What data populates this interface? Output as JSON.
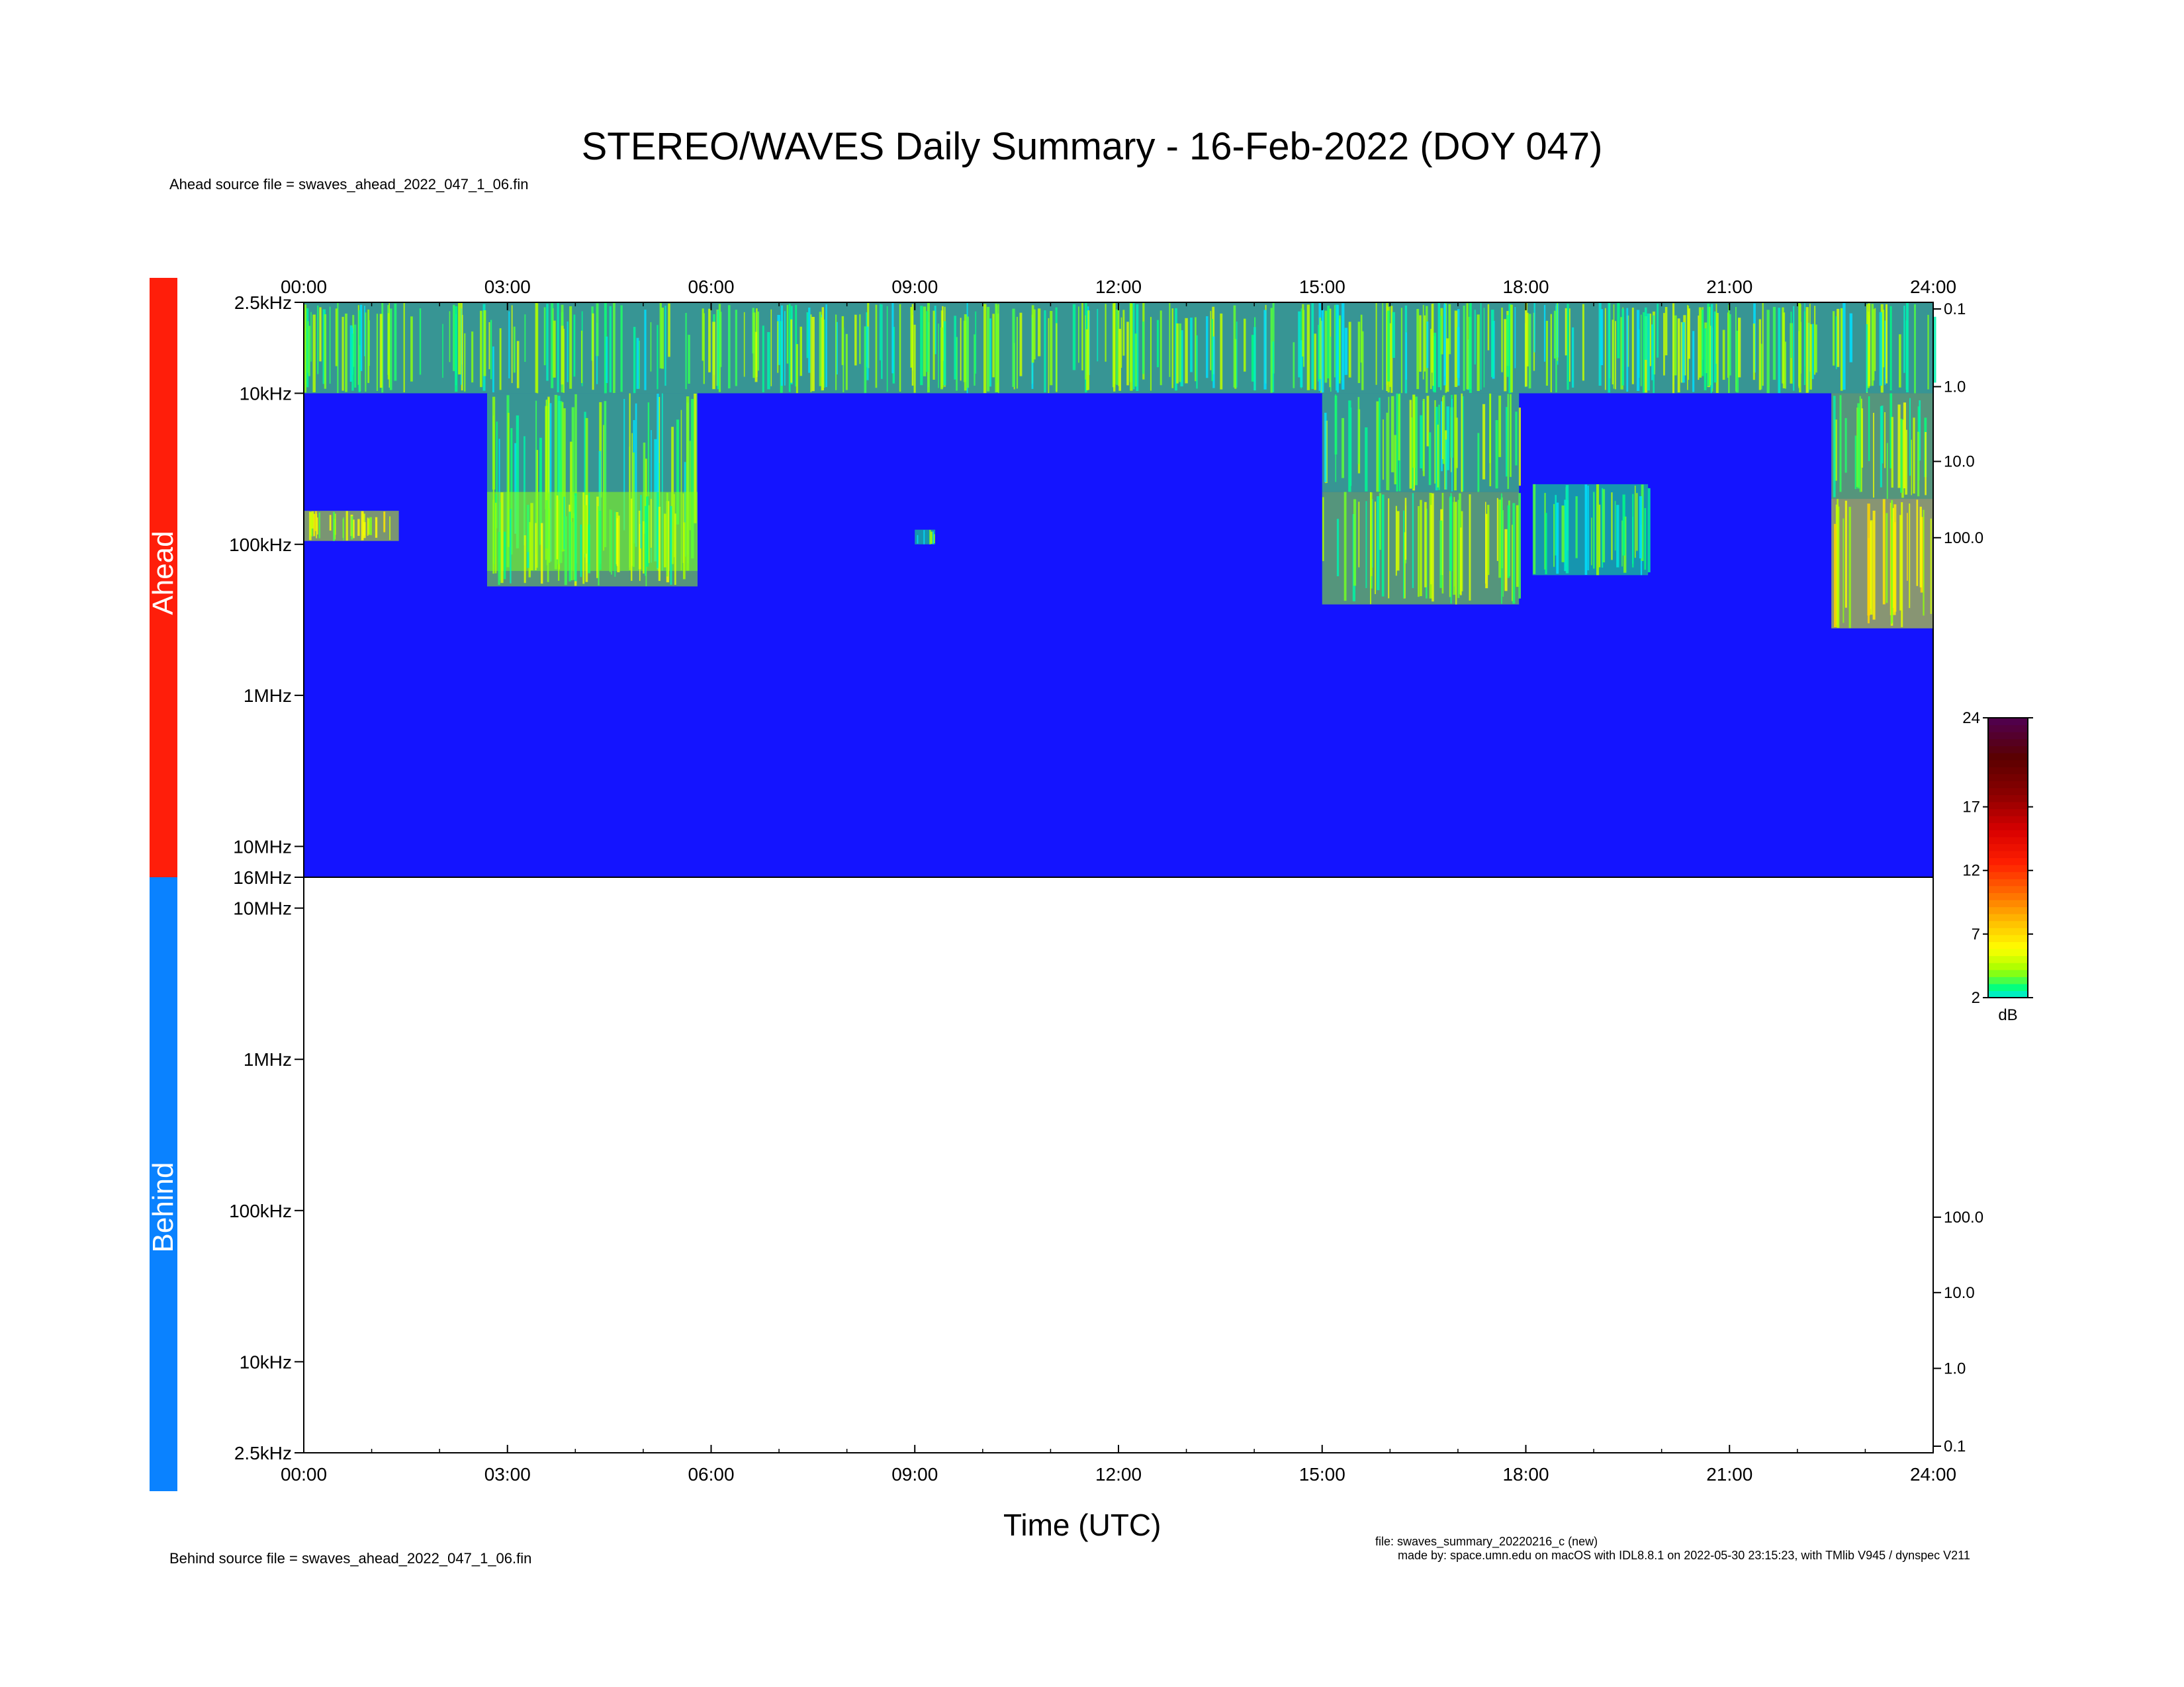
{
  "title": "STEREO/WAVES Daily Summary - 16-Feb-2022 (DOY 047)",
  "ahead_source": "Ahead source file = swaves_ahead_2022_047_1_06.fin",
  "behind_source": "Behind source file = swaves_ahead_2022_047_1_06.fin",
  "xlabel": "Time (UTC)",
  "footer_file": "file: swaves_summary_20220216_c (new)",
  "footer_made_by": "made by: space.umn.edu on macOS with IDL8.8.1 on 2022-05-30 23:15:23, with TMlib V945 / dynspec V211",
  "band_labels": {
    "ahead": "Ahead",
    "behind": "Behind"
  },
  "colors": {
    "ahead_band": "#ff1e0a",
    "behind_band": "#0a82ff",
    "spectrogram_background": "#1414ff"
  },
  "chart_data": [
    {
      "type": "heatmap",
      "name": "Ahead",
      "xlabel": "Time (UTC)",
      "x_unit": "hours UTC",
      "xlim": [
        0,
        24
      ],
      "x_ticks": [
        "00:00",
        "03:00",
        "06:00",
        "09:00",
        "12:00",
        "15:00",
        "18:00",
        "21:00",
        "24:00"
      ],
      "y_scale": "log",
      "ylim_hz": [
        2500,
        16000000
      ],
      "y_ticks": [
        "2.5kHz",
        "10kHz",
        "100kHz",
        "1MHz",
        "10MHz",
        "16MHz"
      ],
      "right_axis_ticks": [
        "0.1",
        "1.0",
        "10.0",
        "100.0"
      ],
      "background_level_db": 2,
      "intensity_regions": [
        {
          "t_start": 0.0,
          "t_end": 24.0,
          "f_low_hz": 2500,
          "f_high_hz": 10000,
          "level_db": 3.5
        },
        {
          "t_start": 0.0,
          "t_end": 1.4,
          "f_low_hz": 60000,
          "f_high_hz": 95000,
          "level_db": 5
        },
        {
          "t_start": 2.7,
          "t_end": 5.8,
          "f_low_hz": 10000,
          "f_high_hz": 150000,
          "level_db": 3.5
        },
        {
          "t_start": 2.7,
          "t_end": 5.8,
          "f_low_hz": 45000,
          "f_high_hz": 190000,
          "level_db": 4
        },
        {
          "t_start": 9.0,
          "t_end": 9.3,
          "f_low_hz": 80000,
          "f_high_hz": 100000,
          "level_db": 3
        },
        {
          "t_start": 15.0,
          "t_end": 17.9,
          "f_low_hz": 10000,
          "f_high_hz": 45000,
          "level_db": 3.5
        },
        {
          "t_start": 15.0,
          "t_end": 17.9,
          "f_low_hz": 45000,
          "f_high_hz": 250000,
          "level_db": 4
        },
        {
          "t_start": 18.1,
          "t_end": 19.8,
          "f_low_hz": 40000,
          "f_high_hz": 160000,
          "level_db": 3
        },
        {
          "t_start": 22.5,
          "t_end": 24.0,
          "f_low_hz": 10000,
          "f_high_hz": 50000,
          "level_db": 4
        },
        {
          "t_start": 22.5,
          "t_end": 24.0,
          "f_low_hz": 50000,
          "f_high_hz": 360000,
          "level_db": 5.5
        }
      ]
    },
    {
      "type": "heatmap",
      "name": "Behind",
      "xlabel": "Time (UTC)",
      "x_unit": "hours UTC",
      "xlim": [
        0,
        24
      ],
      "x_ticks": [
        "00:00",
        "03:00",
        "06:00",
        "09:00",
        "12:00",
        "15:00",
        "18:00",
        "21:00",
        "24:00"
      ],
      "y_scale": "log",
      "ylim_hz": [
        2500,
        16000000
      ],
      "y_ticks": [
        "10MHz",
        "1MHz",
        "100kHz",
        "10kHz",
        "2.5kHz"
      ],
      "right_axis_ticks": [
        "100.0",
        "10.0",
        "1.0",
        "0.1"
      ],
      "empty": true
    }
  ],
  "colorbar": {
    "unit": "dB",
    "range": [
      2,
      24
    ],
    "ticks": [
      "24",
      "17",
      "12",
      "7",
      "2"
    ],
    "stops": [
      "#00e0ff",
      "#00ff80",
      "#a0ff00",
      "#ffff00",
      "#ffc000",
      "#ff7000",
      "#ff2000",
      "#d80000",
      "#8c0000",
      "#5a0000",
      "#500050"
    ]
  }
}
